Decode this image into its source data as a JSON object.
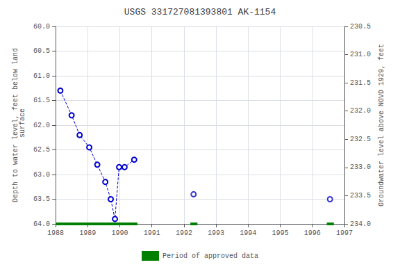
{
  "chart_data": {
    "type": "line",
    "title": "USGS 331727081393801 AK-1154",
    "ylabel": "Depth to water level, feet below land\n surface",
    "y2label": "Groundwater level above NGVD 1929, feet",
    "xlim": [
      1988,
      1997
    ],
    "xticks": [
      1988,
      1989,
      1990,
      1991,
      1992,
      1993,
      1994,
      1995,
      1996,
      1997
    ],
    "ylim": [
      64.0,
      60.0
    ],
    "yticks": [
      {
        "value": 60,
        "label": "60.0"
      },
      60.5,
      {
        "value": 61,
        "label": "61.0"
      },
      61.5,
      {
        "value": 62,
        "label": "62.0"
      },
      62.5,
      {
        "value": 63,
        "label": "63.0"
      },
      63.5,
      {
        "value": 64,
        "label": "64.0"
      }
    ],
    "y2lim": [
      234.0,
      230.5
    ],
    "y2ticks": [
      {
        "value": 234,
        "label": "234.0"
      },
      233.5,
      {
        "value": 233,
        "label": "233.0"
      },
      232.5,
      {
        "value": 232,
        "label": "232.0"
      },
      231.5,
      {
        "value": 231,
        "label": "231.0"
      },
      230.5
    ],
    "grid": true,
    "legend": "bottom",
    "series": [
      {
        "type": "line",
        "color": "#0000cc",
        "line_style": "dashed",
        "marker": "open_circle",
        "x": [
          1988.15,
          1988.5,
          1988.75,
          1989.05,
          1989.3,
          1989.55,
          1989.72,
          1989.85,
          1989.98,
          1990.15,
          1990.45
        ],
        "values": [
          61.3,
          61.8,
          62.2,
          62.45,
          62.8,
          63.15,
          63.5,
          63.9,
          62.85,
          62.85,
          62.7
        ]
      },
      {
        "type": "scatter",
        "color": "#0000cc",
        "marker": "open_circle",
        "x": [
          1992.3,
          1996.55
        ],
        "values": [
          63.4,
          63.5
        ]
      },
      {
        "name": "Period of approved data",
        "type": "interval",
        "color": "#008000",
        "x_start": [
          1988.0,
          1992.2,
          1996.45
        ],
        "x_end": [
          1990.55,
          1992.42,
          1996.67
        ],
        "values": [
          64.0,
          64.0,
          64.0
        ]
      }
    ]
  }
}
